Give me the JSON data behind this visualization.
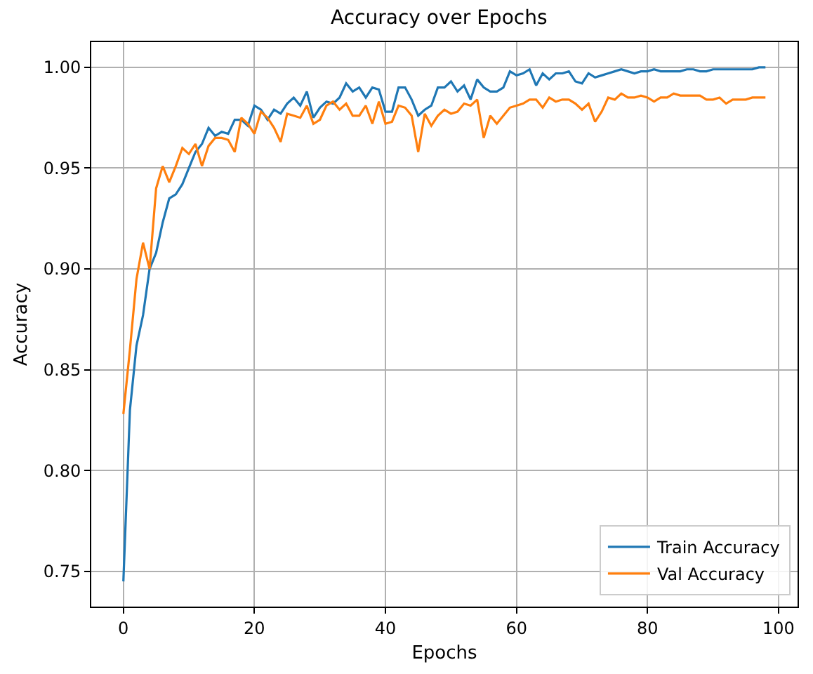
{
  "chart_data": {
    "type": "line",
    "title": "Accuracy over Epochs",
    "xlabel": "Epochs",
    "ylabel": "Accuracy",
    "x": [
      0,
      1,
      2,
      3,
      4,
      5,
      6,
      7,
      8,
      9,
      10,
      11,
      12,
      13,
      14,
      15,
      16,
      17,
      18,
      19,
      20,
      21,
      22,
      23,
      24,
      25,
      26,
      27,
      28,
      29,
      30,
      31,
      32,
      33,
      34,
      35,
      36,
      37,
      38,
      39,
      40,
      41,
      42,
      43,
      44,
      45,
      46,
      47,
      48,
      49,
      50,
      51,
      52,
      53,
      54,
      55,
      56,
      57,
      58,
      59,
      60,
      61,
      62,
      63,
      64,
      65,
      66,
      67,
      68,
      69,
      70,
      71,
      72,
      73,
      74,
      75,
      76,
      77,
      78,
      79,
      80,
      81,
      82,
      83,
      84,
      85,
      86,
      87,
      88,
      89,
      90,
      91,
      92,
      93,
      94,
      95,
      96,
      97,
      98
    ],
    "series": [
      {
        "name": "Train Accuracy",
        "color": "#1f77b4",
        "values": [
          0.745,
          0.83,
          0.862,
          0.877,
          0.9,
          0.908,
          0.923,
          0.935,
          0.937,
          0.942,
          0.95,
          0.958,
          0.962,
          0.97,
          0.966,
          0.968,
          0.967,
          0.974,
          0.974,
          0.971,
          0.981,
          0.979,
          0.974,
          0.979,
          0.977,
          0.982,
          0.985,
          0.981,
          0.988,
          0.975,
          0.98,
          0.983,
          0.982,
          0.985,
          0.992,
          0.988,
          0.99,
          0.985,
          0.99,
          0.989,
          0.978,
          0.978,
          0.99,
          0.99,
          0.984,
          0.976,
          0.979,
          0.981,
          0.99,
          0.99,
          0.993,
          0.988,
          0.991,
          0.984,
          0.994,
          0.99,
          0.988,
          0.988,
          0.99,
          0.998,
          0.996,
          0.997,
          0.999,
          0.991,
          0.997,
          0.994,
          0.997,
          0.997,
          0.998,
          0.993,
          0.992,
          0.997,
          0.995,
          0.996,
          0.997,
          0.998,
          0.999,
          0.998,
          0.997,
          0.998,
          0.998,
          0.999,
          0.998,
          0.998,
          0.998,
          0.998,
          0.999,
          0.999,
          0.998,
          0.998,
          0.999,
          0.999,
          0.999,
          0.999,
          0.999,
          0.999,
          0.999,
          1.0,
          1.0
        ]
      },
      {
        "name": "Val Accuracy",
        "color": "#ff7f0e",
        "values": [
          0.828,
          0.86,
          0.895,
          0.913,
          0.9,
          0.94,
          0.951,
          0.943,
          0.951,
          0.96,
          0.957,
          0.962,
          0.951,
          0.961,
          0.965,
          0.965,
          0.964,
          0.958,
          0.975,
          0.972,
          0.967,
          0.978,
          0.975,
          0.97,
          0.963,
          0.977,
          0.976,
          0.975,
          0.981,
          0.972,
          0.974,
          0.981,
          0.983,
          0.979,
          0.982,
          0.976,
          0.976,
          0.981,
          0.972,
          0.983,
          0.972,
          0.973,
          0.981,
          0.98,
          0.976,
          0.958,
          0.977,
          0.971,
          0.976,
          0.979,
          0.977,
          0.978,
          0.982,
          0.981,
          0.984,
          0.965,
          0.976,
          0.972,
          0.976,
          0.98,
          0.981,
          0.982,
          0.984,
          0.984,
          0.98,
          0.985,
          0.983,
          0.984,
          0.984,
          0.982,
          0.979,
          0.982,
          0.973,
          0.978,
          0.985,
          0.984,
          0.987,
          0.985,
          0.985,
          0.986,
          0.985,
          0.983,
          0.985,
          0.985,
          0.987,
          0.986,
          0.986,
          0.986,
          0.986,
          0.984,
          0.984,
          0.985,
          0.982,
          0.984,
          0.984,
          0.984,
          0.985,
          0.985,
          0.985
        ]
      }
    ],
    "xlim": [
      -4.9,
      102.9
    ],
    "xticks": [
      0,
      20,
      40,
      60,
      80,
      100
    ],
    "ylim": [
      0.7325,
      1.0125
    ],
    "yticks": [
      0.75,
      {
        "value": 0.8,
        "label": "0.80"
      },
      0.85,
      {
        "value": 0.9,
        "label": "0.90"
      },
      0.95,
      {
        "value": 1,
        "label": "1.00"
      }
    ],
    "grid": true,
    "legend": "bottom right",
    "marker": "none",
    "line_style": "solid"
  }
}
